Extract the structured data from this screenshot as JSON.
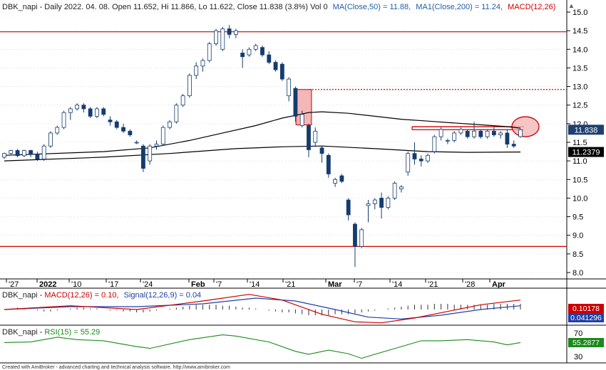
{
  "header": {
    "ticker": "DBK_napi",
    "main_title": "DBK_napi - Daily 2022. 04. 08. Open 11.652, Hi 11.866, Lo 11.622, Close 11.838 (3.8%) Vol 0",
    "ma50_label": "MA(Close,50) = 11.88,",
    "ma200_label": "MA1(Close,200) = 11.24,",
    "macd_label_short": "MACD(12,26)",
    "macd_title_prefix": "DBK_napi - ",
    "macd_title_macd": "MACD(12,26) = 0.10,",
    "macd_title_signal": "Signal(12,26,9) = 0.04",
    "rsi_title_prefix": "DBK_napi - ",
    "rsi_title_rsi": "RSI(15) = 55.29",
    "footer": "Created with AmiBroker - advanced charting and technical analysis software. http://www.amibroker.com"
  },
  "badges": {
    "close": "11.838",
    "ma200": "11.2379",
    "macd": "0.10178",
    "signal": "0.041296",
    "rsi": "55.2877"
  },
  "colors": {
    "up_body": "#ffffff",
    "down_body": "#143c6e",
    "ma": "#000000",
    "ma50_text": "#1f5fa8",
    "ma200_text": "#1f5fa8",
    "macd_line": "#cc0000",
    "signal_line": "#1f3fa8",
    "rsi_line": "#1a8a1a",
    "levels": "#cc0000",
    "grid": "#cccccc"
  },
  "chart_data": {
    "type": "candlestick",
    "price_axis": {
      "ticks": [
        8.0,
        8.5,
        9.0,
        9.5,
        10.0,
        10.5,
        11.0,
        11.5,
        12.0,
        12.5,
        13.0,
        13.5,
        14.0,
        14.5,
        15.0
      ]
    },
    "date_labels": [
      "'27",
      "2022",
      "'10",
      "'17",
      "'24",
      "Feb",
      "'7",
      "'14",
      "'21",
      "Mar",
      "'7",
      "'14",
      "'21",
      "'28",
      "Apr"
    ],
    "candles": [
      [
        11.1,
        11.22,
        11.05,
        11.2
      ],
      [
        11.2,
        11.3,
        11.15,
        11.28
      ],
      [
        11.28,
        11.32,
        11.1,
        11.14
      ],
      [
        11.14,
        11.3,
        11.1,
        11.28
      ],
      [
        11.28,
        11.3,
        11.1,
        11.18
      ],
      [
        11.18,
        11.25,
        11.0,
        11.05
      ],
      [
        11.05,
        11.45,
        11.0,
        11.4
      ],
      [
        11.4,
        11.8,
        11.35,
        11.75
      ],
      [
        11.75,
        11.95,
        11.7,
        11.9
      ],
      [
        11.9,
        12.35,
        11.85,
        12.3
      ],
      [
        12.3,
        12.45,
        12.1,
        12.4
      ],
      [
        12.4,
        12.55,
        12.35,
        12.5
      ],
      [
        12.5,
        12.55,
        12.3,
        12.4
      ],
      [
        12.4,
        12.45,
        12.15,
        12.2
      ],
      [
        12.2,
        12.45,
        12.15,
        12.4
      ],
      [
        12.4,
        12.45,
        12.2,
        12.25
      ],
      [
        12.1,
        12.2,
        11.95,
        12.05
      ],
      [
        12.05,
        12.1,
        11.85,
        11.9
      ],
      [
        11.9,
        12.0,
        11.75,
        11.8
      ],
      [
        11.8,
        11.85,
        11.65,
        11.7
      ],
      [
        11.5,
        11.55,
        11.45,
        11.5
      ],
      [
        11.4,
        11.45,
        10.7,
        10.8
      ],
      [
        11.0,
        11.45,
        10.9,
        11.4
      ],
      [
        11.4,
        11.55,
        11.3,
        11.45
      ],
      [
        11.45,
        11.95,
        11.4,
        11.9
      ],
      [
        11.9,
        12.1,
        11.85,
        12.05
      ],
      [
        12.05,
        12.55,
        12.0,
        12.5
      ],
      [
        12.5,
        12.8,
        12.45,
        12.75
      ],
      [
        12.75,
        13.35,
        12.7,
        13.3
      ],
      [
        13.3,
        13.65,
        13.2,
        13.55
      ],
      [
        13.55,
        13.75,
        13.4,
        13.7
      ],
      [
        13.7,
        14.2,
        13.65,
        14.15
      ],
      [
        14.15,
        14.55,
        14.1,
        14.5
      ],
      [
        14.0,
        14.6,
        13.95,
        14.55
      ],
      [
        14.55,
        14.65,
        14.3,
        14.4
      ],
      [
        14.4,
        14.55,
        14.3,
        14.5
      ],
      [
        13.9,
        14.0,
        13.5,
        13.8
      ],
      [
        13.85,
        14.05,
        13.8,
        14.0
      ],
      [
        14.0,
        14.15,
        13.95,
        14.1
      ],
      [
        14.05,
        14.1,
        13.8,
        13.85
      ],
      [
        13.85,
        13.95,
        13.6,
        13.65
      ],
      [
        13.65,
        13.7,
        13.4,
        13.45
      ],
      [
        13.6,
        13.65,
        13.15,
        13.2
      ],
      [
        12.75,
        13.25,
        12.6,
        13.2
      ],
      [
        12.95,
        13.0,
        12.05,
        12.2
      ],
      [
        11.95,
        12.35,
        11.9,
        12.25
      ],
      [
        11.95,
        12.0,
        11.1,
        11.3
      ],
      [
        11.5,
        11.9,
        11.4,
        11.8
      ],
      [
        11.35,
        11.4,
        10.95,
        11.2
      ],
      [
        11.15,
        11.2,
        10.55,
        10.65
      ],
      [
        10.4,
        10.55,
        10.3,
        10.5
      ],
      [
        10.6,
        10.65,
        10.4,
        10.45
      ],
      [
        9.95,
        10.0,
        9.4,
        9.55
      ],
      [
        9.3,
        9.35,
        8.15,
        8.7
      ],
      [
        8.7,
        9.2,
        8.65,
        9.15
      ],
      [
        9.8,
        9.95,
        9.35,
        9.85
      ],
      [
        9.85,
        10.0,
        9.7,
        9.95
      ],
      [
        10.0,
        10.15,
        9.45,
        9.75
      ],
      [
        9.75,
        10.05,
        9.7,
        10.0
      ],
      [
        10.0,
        10.45,
        9.95,
        10.4
      ],
      [
        10.25,
        10.35,
        10.15,
        10.3
      ],
      [
        10.7,
        11.25,
        10.6,
        11.2
      ],
      [
        11.2,
        11.5,
        10.9,
        11.05
      ],
      [
        11.05,
        11.15,
        10.85,
        11.0
      ],
      [
        11.0,
        11.2,
        10.95,
        11.15
      ],
      [
        11.25,
        11.7,
        11.2,
        11.65
      ],
      [
        11.65,
        11.9,
        11.55,
        11.85
      ],
      [
        11.55,
        11.6,
        11.45,
        11.55
      ],
      [
        11.55,
        11.8,
        11.5,
        11.75
      ],
      [
        11.75,
        11.9,
        11.7,
        11.85
      ],
      [
        11.8,
        11.85,
        11.6,
        11.65
      ],
      [
        11.65,
        12.05,
        11.6,
        11.8
      ],
      [
        11.8,
        11.85,
        11.6,
        11.65
      ],
      [
        11.65,
        11.85,
        11.6,
        11.8
      ],
      [
        11.8,
        11.9,
        11.65,
        11.7
      ],
      [
        11.7,
        11.8,
        11.6,
        11.75
      ],
      [
        11.75,
        11.85,
        11.35,
        11.45
      ],
      [
        11.45,
        11.55,
        11.35,
        11.4
      ],
      [
        11.652,
        11.866,
        11.622,
        11.838
      ]
    ],
    "ma50": [
      [
        0,
        11.15
      ],
      [
        15,
        11.25
      ],
      [
        22,
        11.35
      ],
      [
        28,
        11.55
      ],
      [
        33,
        11.75
      ],
      [
        38,
        11.95
      ],
      [
        42,
        12.15
      ],
      [
        46,
        12.3
      ],
      [
        48,
        12.32
      ],
      [
        52,
        12.28
      ],
      [
        56,
        12.2
      ],
      [
        60,
        12.12
      ],
      [
        64,
        12.07
      ],
      [
        68,
        12.02
      ],
      [
        72,
        11.97
      ],
      [
        76,
        11.92
      ],
      [
        78,
        11.88
      ]
    ],
    "ma200": [
      [
        0,
        11.0
      ],
      [
        15,
        11.1
      ],
      [
        25,
        11.2
      ],
      [
        35,
        11.33
      ],
      [
        42,
        11.38
      ],
      [
        48,
        11.4
      ],
      [
        56,
        11.33
      ],
      [
        64,
        11.25
      ],
      [
        70,
        11.23
      ],
      [
        78,
        11.24
      ]
    ],
    "levels": [
      14.47,
      8.7
    ],
    "dotted_level": 12.92,
    "resistance_zone_price": [
      11.92,
      11.84
    ],
    "pink_box": {
      "i0": 44.4,
      "i1": 46.1,
      "top": 12.92,
      "bottom": 11.97
    },
    "ellipse_price": 11.92,
    "macd": {
      "range": [
        -0.3,
        0.3
      ],
      "macd_pts": [
        [
          0,
          0.0
        ],
        [
          10,
          0.04
        ],
        [
          20,
          0.0
        ],
        [
          30,
          0.09
        ],
        [
          37,
          0.16
        ],
        [
          42,
          0.1
        ],
        [
          48,
          -0.05
        ],
        [
          53,
          -0.13
        ],
        [
          57,
          -0.14
        ],
        [
          62,
          -0.09
        ],
        [
          67,
          -0.02
        ],
        [
          72,
          0.05
        ],
        [
          78,
          0.1
        ]
      ],
      "signal_pts": [
        [
          0,
          0.0
        ],
        [
          10,
          0.03
        ],
        [
          20,
          0.03
        ],
        [
          30,
          0.06
        ],
        [
          38,
          0.12
        ],
        [
          44,
          0.09
        ],
        [
          50,
          0.0
        ],
        [
          55,
          -0.08
        ],
        [
          60,
          -0.1
        ],
        [
          66,
          -0.06
        ],
        [
          72,
          0.0
        ],
        [
          78,
          0.04
        ]
      ],
      "hist": [
        0.0,
        0.01,
        0.02,
        0.01,
        0.0,
        -0.01,
        -0.02,
        -0.02,
        -0.01,
        0.0,
        0.01,
        0.02,
        0.02,
        0.01,
        0.01,
        0.0,
        -0.01,
        -0.01,
        -0.02,
        -0.02,
        -0.03,
        -0.03,
        -0.02,
        -0.01,
        0.0,
        0.01,
        0.02,
        0.03,
        0.04,
        0.05,
        0.05,
        0.05,
        0.05,
        0.04,
        0.04,
        0.03,
        0.02,
        0.02,
        0.01,
        0.0,
        -0.01,
        -0.02,
        -0.03,
        -0.03,
        -0.04,
        -0.05,
        -0.06,
        -0.06,
        -0.06,
        -0.06,
        -0.05,
        -0.05,
        -0.05,
        -0.04,
        -0.03,
        -0.02,
        -0.01,
        0.0,
        0.01,
        0.02,
        0.03,
        0.04,
        0.05,
        0.05,
        0.05,
        0.06,
        0.06,
        0.06,
        0.05,
        0.05,
        0.05,
        0.05,
        0.05,
        0.05,
        0.06,
        0.06,
        0.06,
        0.06,
        0.06
      ]
    },
    "rsi": {
      "range": [
        20,
        80
      ],
      "ticks": [
        30,
        70
      ],
      "pts": [
        [
          0,
          55
        ],
        [
          4,
          56
        ],
        [
          8,
          64
        ],
        [
          11,
          60
        ],
        [
          15,
          58
        ],
        [
          20,
          48
        ],
        [
          22,
          45
        ],
        [
          28,
          60
        ],
        [
          33,
          68
        ],
        [
          35,
          66
        ],
        [
          40,
          56
        ],
        [
          44,
          40
        ],
        [
          46,
          35
        ],
        [
          49,
          42
        ],
        [
          52,
          36
        ],
        [
          54,
          28
        ],
        [
          56,
          35
        ],
        [
          60,
          48
        ],
        [
          63,
          58
        ],
        [
          66,
          58
        ],
        [
          70,
          60
        ],
        [
          74,
          56
        ],
        [
          76,
          51
        ],
        [
          78,
          55
        ]
      ]
    }
  }
}
